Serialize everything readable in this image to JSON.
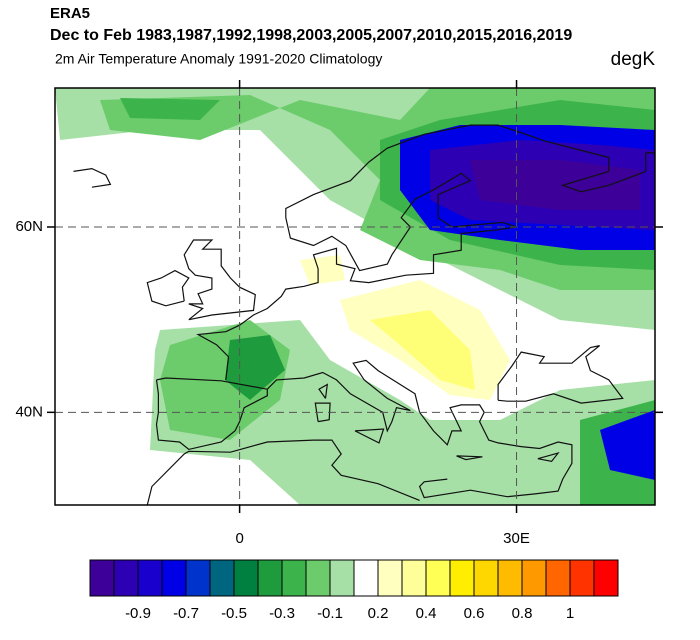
{
  "header": {
    "source": "ERA5",
    "title": "Dec to Feb 1983,1987,1992,1998,2003,2005,2007,2010,2015,2016,2019",
    "subtitle": "2m Air Temperature Anomaly  1991-2020 Climatology",
    "units": "degK"
  },
  "map": {
    "lonlim": [
      -20,
      45
    ],
    "latlim": [
      30,
      75
    ],
    "lat_ticks": [
      {
        "value": 60,
        "label": "60N"
      },
      {
        "value": 40,
        "label": "40N"
      }
    ],
    "lon_ticks": [
      0,
      {
        "value": 30,
        "label": "30E"
      }
    ]
  },
  "colorbar": {
    "colors": [
      "#3d0099",
      "#2e00b3",
      "#1a00cc",
      "#0000e6",
      "#0033cc",
      "#006680",
      "#008040",
      "#1e9b3c",
      "#3cb44b",
      "#6ccc6c",
      "#a6e0a6",
      "#ffffff",
      "#ffffc0",
      "#ffff99",
      "#ffff55",
      "#ffee00",
      "#ffd700",
      "#ffbb00",
      "#ff9900",
      "#ff6600",
      "#ff3300",
      "#ff0000"
    ],
    "labels": [
      -0.9,
      -0.7,
      -0.5,
      -0.3,
      -0.1,
      0.2,
      0.4,
      0.6,
      0.8,
      1
    ]
  }
}
